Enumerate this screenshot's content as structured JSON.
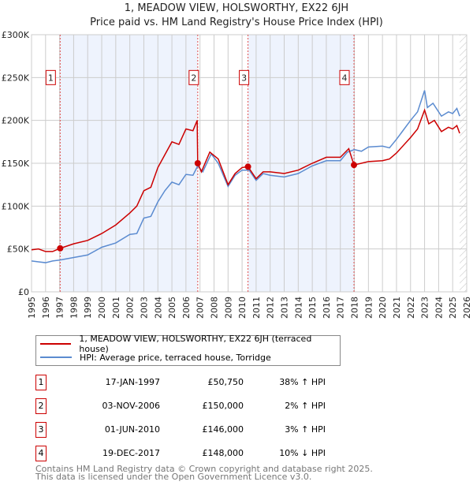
{
  "chart_data": {
    "type": "line",
    "title": "1, MEADOW VIEW, HOLSWORTHY, EX22 6JH",
    "subtitle": "Price paid vs. HM Land Registry's House Price Index (HPI)",
    "xlim": [
      1995,
      2026
    ],
    "ylim": [
      0,
      300000
    ],
    "xticks": [
      "1995",
      "1996",
      "1997",
      "1998",
      "1999",
      "2000",
      "2001",
      "2002",
      "2003",
      "2004",
      "2005",
      "2006",
      "2007",
      "2008",
      "2009",
      "2010",
      "2011",
      "2012",
      "2013",
      "2014",
      "2015",
      "2016",
      "2017",
      "2018",
      "2019",
      "2020",
      "2021",
      "2022",
      "2023",
      "2024",
      "2025",
      "2026"
    ],
    "yticks": [
      {
        "v": 0,
        "label": "£0"
      },
      {
        "v": 50000,
        "label": "£50K"
      },
      {
        "v": 100000,
        "label": "£100K"
      },
      {
        "v": 150000,
        "label": "£150K"
      },
      {
        "v": 200000,
        "label": "£200K"
      },
      {
        "v": 250000,
        "label": "£250K"
      },
      {
        "v": 300000,
        "label": "£300K"
      }
    ],
    "grid": true,
    "series": [
      {
        "name": "1, MEADOW VIEW, HOLSWORTHY, EX22 6JH (terraced house)",
        "color": "#cc0000",
        "x": [
          1995,
          1995.5,
          1996,
          1996.5,
          1997.04,
          1998,
          1999,
          2000,
          2001,
          2002,
          2002.5,
          2003,
          2003.5,
          2004,
          2004.5,
          2005,
          2005.5,
          2006,
          2006.5,
          2006.8,
          2006.84,
          2007.1,
          2007.7,
          2008.3,
          2009,
          2009.5,
          2010,
          2010.42,
          2011,
          2011.5,
          2012,
          2013,
          2014,
          2015,
          2016,
          2017,
          2017.6,
          2017.97,
          2018.5,
          2019,
          2020,
          2020.5,
          2021,
          2022,
          2022.5,
          2023,
          2023.3,
          2023.7,
          2024.2,
          2024.7,
          2025,
          2025.3,
          2025.5
        ],
        "y": [
          49000,
          50000,
          47000,
          47000,
          50750,
          56000,
          60000,
          68000,
          78000,
          92000,
          100000,
          118000,
          122000,
          145000,
          160000,
          175000,
          172000,
          190000,
          188000,
          200000,
          150000,
          140000,
          163000,
          155000,
          125000,
          138000,
          145000,
          146000,
          132000,
          140000,
          140000,
          138000,
          142000,
          150000,
          157000,
          157000,
          167000,
          148000,
          150000,
          152000,
          153000,
          155000,
          162000,
          180000,
          190000,
          212000,
          196000,
          200000,
          187000,
          192000,
          190000,
          194000,
          185000
        ]
      },
      {
        "name": "HPI: Average price, terraced house, Torridge",
        "color": "#5b8bd0",
        "x": [
          1995,
          1995.5,
          1996,
          1996.5,
          1997,
          1998,
          1999,
          2000,
          2001,
          2002,
          2002.5,
          2003,
          2003.5,
          2004,
          2004.5,
          2005,
          2005.5,
          2006,
          2006.5,
          2006.84,
          2007.2,
          2007.8,
          2008.3,
          2009,
          2009.5,
          2010,
          2010.5,
          2011,
          2011.5,
          2012,
          2013,
          2014,
          2015,
          2016,
          2017,
          2017.5,
          2018,
          2018.5,
          2019,
          2020,
          2020.5,
          2021,
          2022,
          2022.5,
          2023,
          2023.2,
          2023.6,
          2024.2,
          2024.7,
          2025,
          2025.3,
          2025.5
        ],
        "y": [
          36000,
          35000,
          34000,
          36000,
          37000,
          40000,
          43000,
          52000,
          57000,
          67000,
          68000,
          86000,
          88000,
          105000,
          118000,
          128000,
          125000,
          137000,
          136000,
          147000,
          140000,
          161000,
          150000,
          123000,
          136000,
          142000,
          142000,
          130000,
          138000,
          136000,
          134000,
          138000,
          147000,
          153000,
          153000,
          163000,
          166000,
          164000,
          169000,
          170000,
          168000,
          178000,
          200000,
          210000,
          235000,
          215000,
          220000,
          205000,
          210000,
          208000,
          214000,
          205000
        ]
      }
    ],
    "sales": [
      {
        "n": "1",
        "x": 1997.04,
        "y": 50750
      },
      {
        "n": "2",
        "x": 2006.84,
        "y": 150000
      },
      {
        "n": "3",
        "x": 2010.42,
        "y": 146000
      },
      {
        "n": "4",
        "x": 2017.97,
        "y": 148000
      }
    ],
    "shaded": [
      [
        1997.04,
        2006.84
      ],
      [
        2010.42,
        2017.97
      ]
    ],
    "hatched_from": 2025.5
  },
  "legend": {
    "items": [
      {
        "label": "1, MEADOW VIEW, HOLSWORTHY, EX22 6JH (terraced house)",
        "color": "#cc0000"
      },
      {
        "label": "HPI: Average price, terraced house, Torridge",
        "color": "#5b8bd0"
      }
    ]
  },
  "table": [
    {
      "n": "1",
      "date": "17-JAN-1997",
      "price": "£50,750",
      "hpi": "38% ↑ HPI"
    },
    {
      "n": "2",
      "date": "03-NOV-2006",
      "price": "£150,000",
      "hpi": "2% ↑ HPI"
    },
    {
      "n": "3",
      "date": "01-JUN-2010",
      "price": "£146,000",
      "hpi": "3% ↑ HPI"
    },
    {
      "n": "4",
      "date": "19-DEC-2017",
      "price": "£148,000",
      "hpi": "10% ↓ HPI"
    }
  ],
  "footer": {
    "line1": "Contains HM Land Registry data © Crown copyright and database right 2025.",
    "line2": "This data is licensed under the Open Government Licence v3.0."
  }
}
